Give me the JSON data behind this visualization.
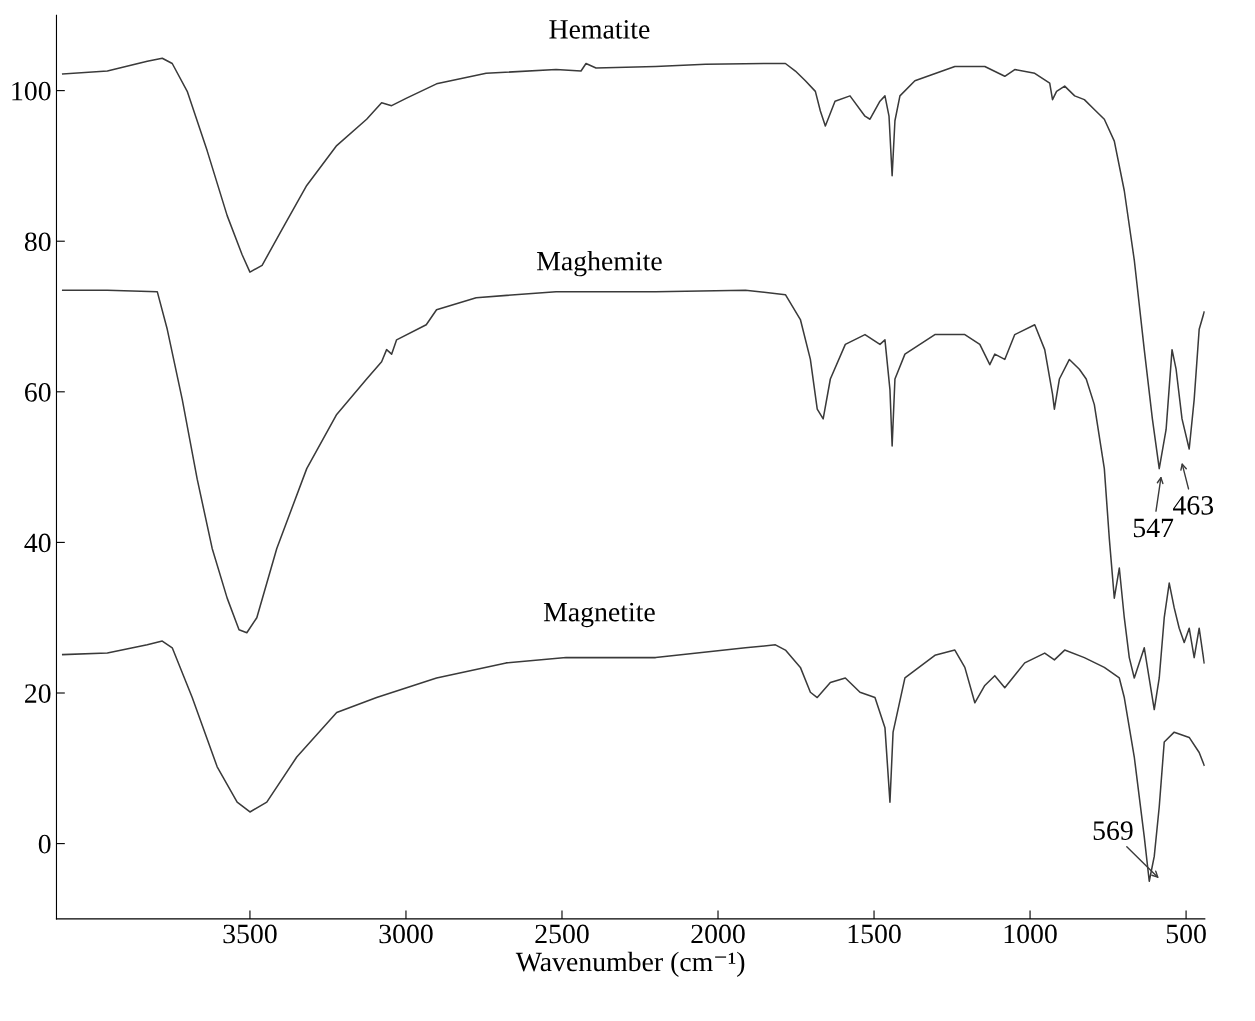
{
  "chart_data": {
    "type": "line",
    "xlabel": "Wavenumber (cm⁻¹)",
    "xlim": [
      4120,
      440
    ],
    "ylim": [
      -10,
      110
    ],
    "xticks": [
      3500,
      3000,
      2500,
      2000,
      1500,
      1000,
      500
    ],
    "yticks": [
      0,
      20,
      40,
      60,
      80,
      100
    ],
    "grid": false,
    "legend": false,
    "marker": "none",
    "line_style": "solid",
    "series": [
      {
        "name": "Hematite",
        "color": "#3a3a3a",
        "x": [
          4100,
          3957,
          3829,
          3781,
          3749,
          3701,
          3637,
          3573,
          3525,
          3500,
          3461,
          3398,
          3318,
          3222,
          3126,
          3078,
          3046,
          2998,
          2902,
          2743,
          2519,
          2439,
          2423,
          2391,
          2200,
          2040,
          1848,
          1784,
          1752,
          1720,
          1688,
          1672,
          1656,
          1625,
          1577,
          1529,
          1513,
          1481,
          1465,
          1452,
          1442,
          1433,
          1417,
          1369,
          1241,
          1145,
          1081,
          1049,
          985,
          937,
          928,
          915,
          889,
          857,
          826,
          794,
          762,
          730,
          698,
          666,
          634,
          608,
          586,
          564,
          545,
          532,
          513,
          490,
          474,
          458,
          442
        ],
        "values": [
          102.2,
          102.6,
          103.9,
          104.3,
          103.6,
          99.9,
          92.0,
          83.4,
          78.2,
          75.9,
          76.8,
          81.5,
          87.4,
          92.7,
          96.2,
          98.4,
          98.0,
          99.0,
          100.9,
          102.3,
          102.8,
          102.6,
          103.6,
          103.0,
          103.2,
          103.5,
          103.6,
          103.6,
          102.6,
          101.3,
          99.9,
          97.3,
          95.3,
          98.6,
          99.3,
          96.6,
          96.2,
          98.6,
          99.3,
          96.6,
          88.7,
          96.0,
          99.3,
          101.3,
          103.2,
          103.2,
          101.9,
          102.8,
          102.3,
          101.0,
          98.8,
          99.9,
          100.6,
          99.3,
          98.8,
          97.5,
          96.2,
          93.3,
          86.7,
          77.5,
          65.6,
          56.4,
          49.8,
          55.0,
          65.6,
          63.0,
          56.4,
          52.4,
          59.0,
          68.3,
          70.6
        ]
      },
      {
        "name": "Maghemite",
        "color": "#3a3a3a",
        "x": [
          4100,
          3957,
          3797,
          3765,
          3717,
          3669,
          3621,
          3573,
          3535,
          3510,
          3478,
          3414,
          3318,
          3222,
          3126,
          3078,
          3062,
          3046,
          3030,
          2935,
          2902,
          2775,
          2519,
          2200,
          1912,
          1784,
          1736,
          1704,
          1682,
          1663,
          1640,
          1592,
          1529,
          1481,
          1465,
          1449,
          1442,
          1433,
          1401,
          1305,
          1209,
          1161,
          1129,
          1113,
          1081,
          1049,
          985,
          953,
          928,
          922,
          906,
          874,
          842,
          820,
          794,
          762,
          746,
          730,
          714,
          698,
          682,
          666,
          634,
          602,
          586,
          570,
          554,
          538,
          522,
          506,
          490,
          474,
          458,
          442
        ],
        "values": [
          73.5,
          73.5,
          73.3,
          68.3,
          59.0,
          48.4,
          39.2,
          32.6,
          28.4,
          28.0,
          30.0,
          39.2,
          49.8,
          57.0,
          61.7,
          64.0,
          65.6,
          65.0,
          66.9,
          68.9,
          70.9,
          72.5,
          73.3,
          73.3,
          73.5,
          72.9,
          69.6,
          64.3,
          57.7,
          56.4,
          61.7,
          66.3,
          67.6,
          66.3,
          66.9,
          60.3,
          52.8,
          61.7,
          65.0,
          67.6,
          67.6,
          66.3,
          63.6,
          65.0,
          64.3,
          67.6,
          68.9,
          65.6,
          59.7,
          57.7,
          61.7,
          64.3,
          63.0,
          61.7,
          58.3,
          49.8,
          40.5,
          32.6,
          36.6,
          30.0,
          24.7,
          22.0,
          26.0,
          17.8,
          22.0,
          30.0,
          34.6,
          31.3,
          28.6,
          26.7,
          28.6,
          24.7,
          28.6,
          24.0
        ]
      },
      {
        "name": "Magnetite",
        "color": "#3a3a3a",
        "x": [
          4100,
          3957,
          3829,
          3781,
          3749,
          3685,
          3605,
          3541,
          3500,
          3446,
          3350,
          3222,
          3094,
          2998,
          2902,
          2679,
          2487,
          2200,
          1912,
          1816,
          1784,
          1736,
          1704,
          1682,
          1640,
          1592,
          1545,
          1497,
          1465,
          1449,
          1439,
          1401,
          1305,
          1241,
          1209,
          1177,
          1145,
          1113,
          1081,
          1017,
          953,
          922,
          889,
          826,
          762,
          714,
          698,
          666,
          634,
          618,
          602,
          586,
          570,
          538,
          490,
          458,
          442
        ],
        "values": [
          25.1,
          25.3,
          26.4,
          26.9,
          26.0,
          19.4,
          10.2,
          5.5,
          4.2,
          5.5,
          11.5,
          17.4,
          19.4,
          20.7,
          22.0,
          24.0,
          24.7,
          24.7,
          26.0,
          26.4,
          25.7,
          23.4,
          20.1,
          19.4,
          21.4,
          22.0,
          20.1,
          19.4,
          15.4,
          5.5,
          14.8,
          22.0,
          25.0,
          25.7,
          23.4,
          18.7,
          21.0,
          22.3,
          20.7,
          24.0,
          25.3,
          24.4,
          25.7,
          24.7,
          23.4,
          22.0,
          19.4,
          11.5,
          0.9,
          -5.0,
          -1.7,
          4.9,
          13.5,
          14.8,
          14.1,
          12.1,
          10.4
        ]
      }
    ],
    "annotations": [
      "547",
      "463",
      "569"
    ]
  }
}
